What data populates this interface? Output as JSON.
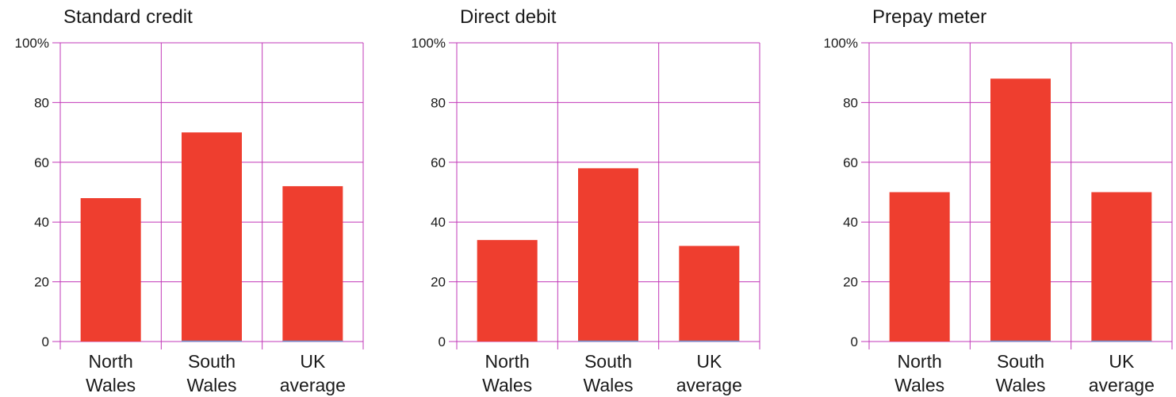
{
  "chart_data": [
    {
      "type": "bar",
      "title": "Standard credit",
      "categories": [
        "North Wales",
        "South Wales",
        "UK average"
      ],
      "values": [
        48,
        70,
        52
      ],
      "ylim": [
        0,
        100
      ],
      "yticks": [
        "0",
        "20",
        "40",
        "60",
        "80",
        "100%"
      ],
      "xlabel": "",
      "ylabel": "",
      "grid": true
    },
    {
      "type": "bar",
      "title": "Direct debit",
      "categories": [
        "North Wales",
        "South Wales",
        "UK average"
      ],
      "values": [
        34,
        58,
        32
      ],
      "ylim": [
        0,
        100
      ],
      "yticks": [
        "0",
        "20",
        "40",
        "60",
        "80",
        "100%"
      ],
      "xlabel": "",
      "ylabel": "",
      "grid": true
    },
    {
      "type": "bar",
      "title": "Prepay meter",
      "categories": [
        "North Wales",
        "South Wales",
        "UK average"
      ],
      "values": [
        50,
        88,
        50
      ],
      "ylim": [
        0,
        100
      ],
      "yticks": [
        "0",
        "20",
        "40",
        "60",
        "80",
        "100%"
      ],
      "xlabel": "",
      "ylabel": "",
      "grid": true
    }
  ],
  "colors": {
    "bar": "#ee3e2f",
    "grid": "#c238b8",
    "baseline_accent": "#6a8fc7",
    "text": "#1a1a1a"
  }
}
